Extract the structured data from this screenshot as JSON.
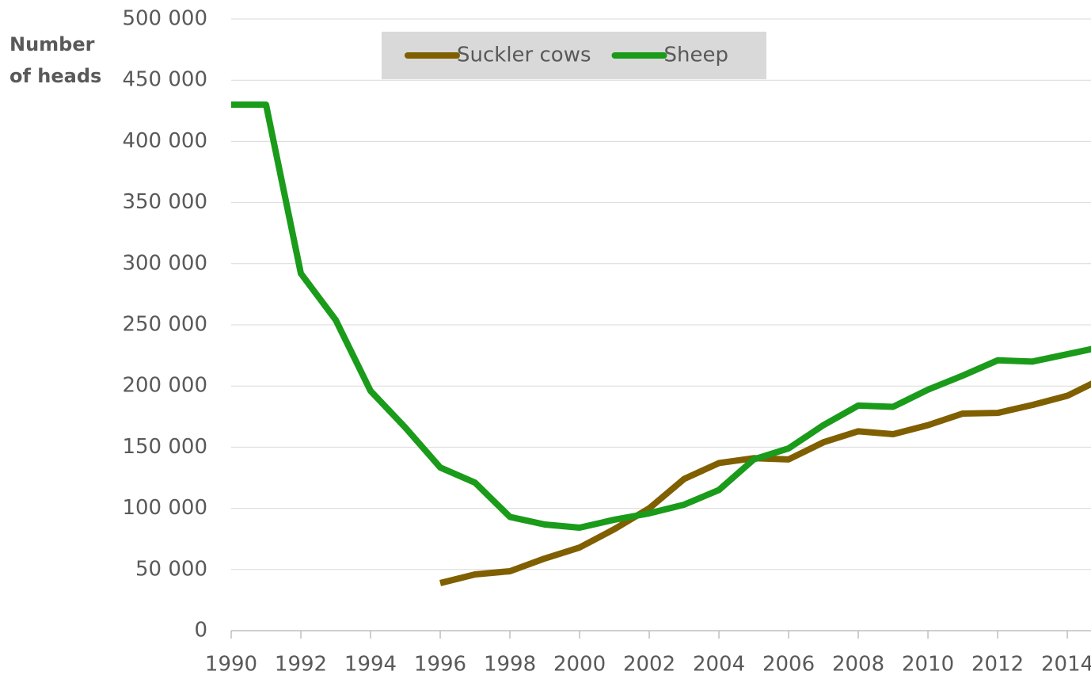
{
  "chart_data": {
    "type": "line",
    "ylabel": "Number of heads",
    "x": [
      1990,
      1991,
      1992,
      1993,
      1994,
      1995,
      1996,
      1997,
      1998,
      1999,
      2000,
      2001,
      2002,
      2003,
      2004,
      2005,
      2006,
      2007,
      2008,
      2009,
      2010,
      2011,
      2012,
      2013,
      2014,
      2015
    ],
    "series": [
      {
        "name": "Suckler cows",
        "color": "#7f5f00",
        "values": [
          null,
          null,
          null,
          null,
          null,
          null,
          38900,
          46000,
          48600,
          59000,
          68000,
          83000,
          100000,
          124000,
          137000,
          141000,
          140000,
          154000,
          163000,
          160600,
          168000,
          177500,
          178000,
          184500,
          192000,
          206000
        ]
      },
      {
        "name": "Sheep",
        "color": "#1a9b1a",
        "values": [
          430000,
          430000,
          292000,
          254000,
          196000,
          166000,
          133400,
          121000,
          93000,
          86800,
          84200,
          90700,
          95900,
          103000,
          115000,
          140000,
          149000,
          168000,
          184000,
          183000,
          197000,
          208500,
          221000,
          220000,
          226000,
          232000
        ]
      }
    ],
    "xlim": [
      1990,
      2014.68
    ],
    "xticks": [
      1990,
      1992,
      1994,
      1996,
      1998,
      2000,
      2002,
      2004,
      2006,
      2008,
      2010,
      2012,
      2014
    ],
    "ylim": [
      0,
      500000
    ],
    "yticks": [
      0,
      {
        "value": 50000,
        "label": "50 000"
      },
      {
        "value": 100000,
        "label": "100 000"
      },
      {
        "value": 150000,
        "label": "150 000"
      },
      {
        "value": 200000,
        "label": "200 000"
      },
      {
        "value": 250000,
        "label": "250 000"
      },
      {
        "value": 300000,
        "label": "300 000"
      },
      {
        "value": 350000,
        "label": "350 000"
      },
      {
        "value": 400000,
        "label": "400 000"
      },
      {
        "value": 450000,
        "label": "450 000"
      },
      {
        "value": 500000,
        "label": "500 000"
      }
    ],
    "grid": true,
    "legend": "top"
  }
}
